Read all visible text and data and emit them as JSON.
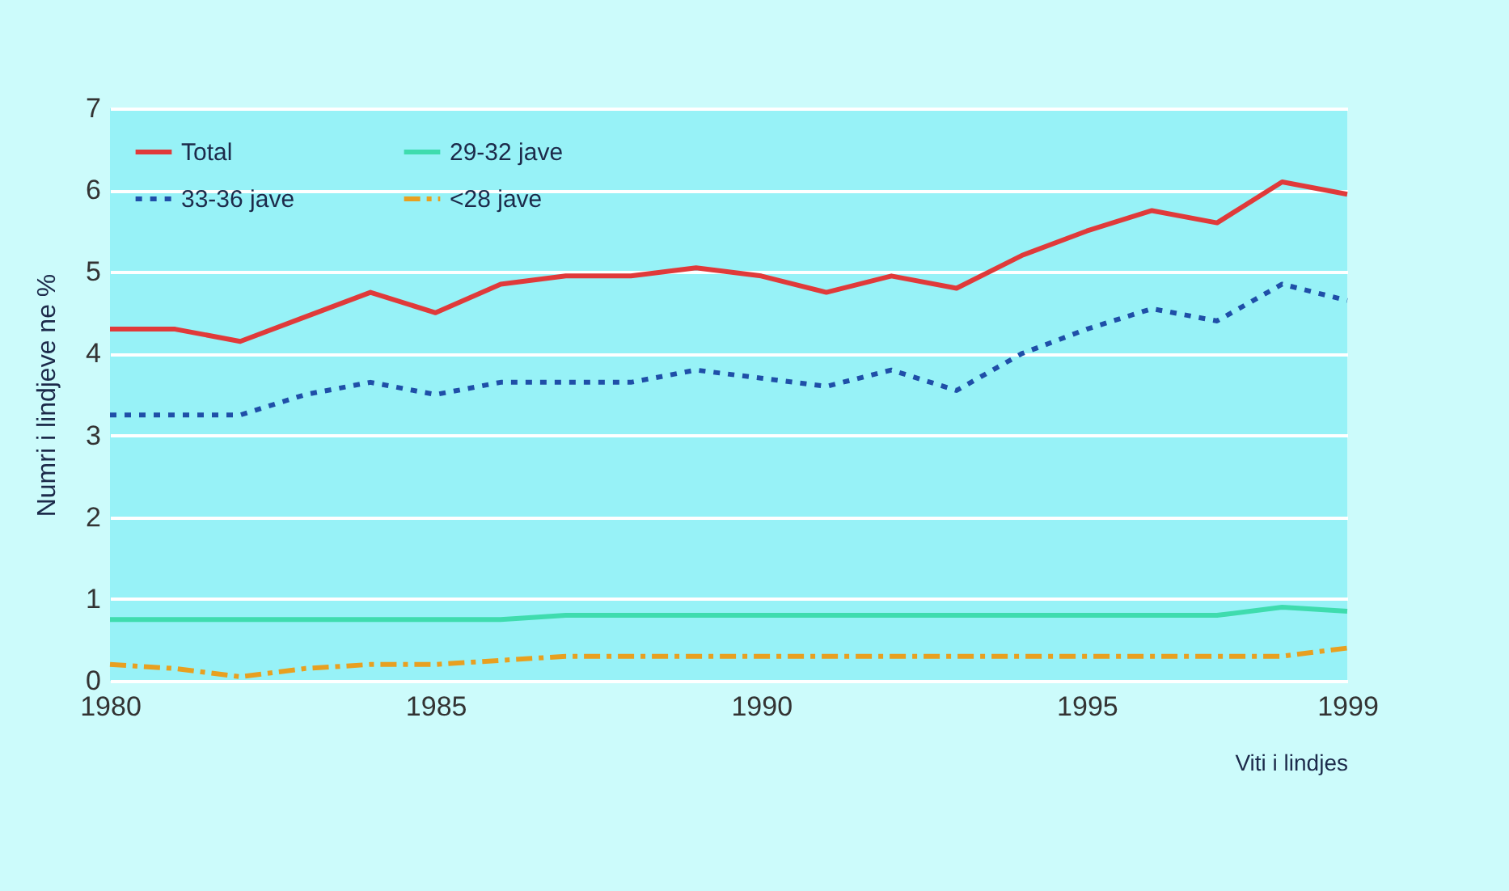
{
  "chart_data": {
    "type": "line",
    "xlabel": "Viti i lindjes",
    "ylabel": "Numri i lindjeve ne %",
    "x": [
      1980,
      1981,
      1982,
      1983,
      1984,
      1985,
      1986,
      1987,
      1988,
      1989,
      1990,
      1991,
      1992,
      1993,
      1994,
      1995,
      1996,
      1997,
      1998,
      1999
    ],
    "series": [
      {
        "name": "Total",
        "color": "#e03a3a",
        "line_style": "solid",
        "values": [
          4.3,
          4.3,
          4.15,
          4.45,
          4.75,
          4.5,
          4.85,
          4.95,
          4.95,
          5.05,
          4.95,
          4.75,
          4.95,
          4.8,
          5.2,
          5.5,
          5.75,
          5.6,
          6.1,
          5.95
        ]
      },
      {
        "name": "29-32 jave",
        "color": "#3fdcae",
        "line_style": "solid",
        "values": [
          0.75,
          0.75,
          0.75,
          0.75,
          0.75,
          0.75,
          0.75,
          0.8,
          0.8,
          0.8,
          0.8,
          0.8,
          0.8,
          0.8,
          0.8,
          0.8,
          0.8,
          0.8,
          0.9,
          0.85
        ]
      },
      {
        "name": "33-36 jave",
        "color": "#1f4fa8",
        "line_style": "dotted",
        "values": [
          3.25,
          3.25,
          3.25,
          3.5,
          3.65,
          3.5,
          3.65,
          3.65,
          3.65,
          3.8,
          3.7,
          3.6,
          3.8,
          3.55,
          4.0,
          4.3,
          4.55,
          4.4,
          4.85,
          4.65
        ]
      },
      {
        "name": "<28 jave",
        "color": "#e8a020",
        "line_style": "dashed",
        "values": [
          0.2,
          0.15,
          0.05,
          0.15,
          0.2,
          0.2,
          0.25,
          0.3,
          0.3,
          0.3,
          0.3,
          0.3,
          0.3,
          0.3,
          0.3,
          0.3,
          0.3,
          0.3,
          0.3,
          0.4
        ]
      }
    ],
    "xlim": [
      1980,
      1999
    ],
    "xticks": [
      1980,
      1985,
      1990,
      1995,
      1999
    ],
    "ylim": [
      0,
      7
    ],
    "yticks": [
      0,
      1,
      2,
      3,
      4,
      5,
      6,
      7
    ],
    "grid": "y",
    "legend": "top left"
  }
}
